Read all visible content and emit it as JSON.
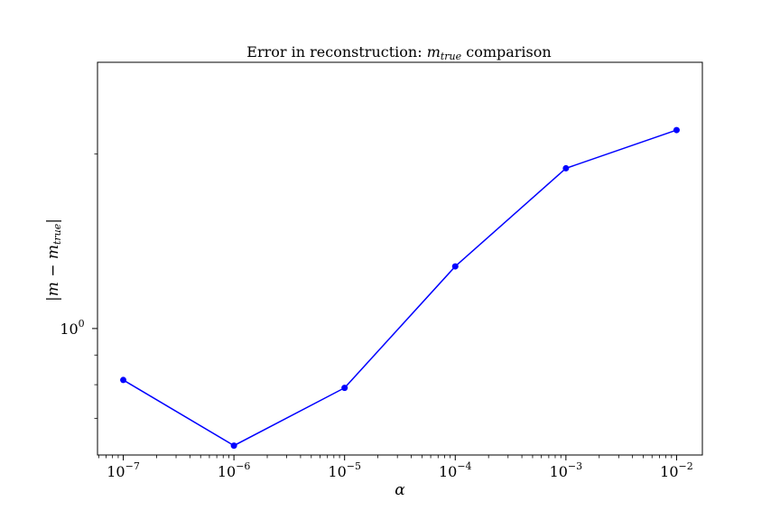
{
  "chart_data": {
    "type": "line",
    "title_prefix": "Error in reconstruction: ",
    "title_math_base": "m",
    "title_math_sub": "true",
    "title_suffix": " comparison",
    "xlabel": "α",
    "ylabel_base": "|m − m",
    "ylabel_sub": "true",
    "ylabel_close": "|",
    "x_scale": "log",
    "y_scale": "log",
    "xlim": [
      5.85e-08,
      0.0171
    ],
    "ylim": [
      0.605,
      2.88
    ],
    "x_ticks": [
      {
        "value": 1e-07,
        "base": "10",
        "exp": "−7"
      },
      {
        "value": 1e-06,
        "base": "10",
        "exp": "−6"
      },
      {
        "value": 1e-05,
        "base": "10",
        "exp": "−5"
      },
      {
        "value": 0.0001,
        "base": "10",
        "exp": "−4"
      },
      {
        "value": 0.001,
        "base": "10",
        "exp": "−3"
      },
      {
        "value": 0.01,
        "base": "10",
        "exp": "−2"
      }
    ],
    "y_major_ticks": [
      {
        "value": 1,
        "base": "10",
        "exp": "0"
      }
    ],
    "y_minor_ticks": [
      0.7,
      0.8,
      0.9,
      2
    ],
    "color": "#0000ff",
    "series": [
      {
        "name": "error",
        "x": [
          1e-07,
          1e-06,
          1e-05,
          0.0001,
          0.001,
          0.01
        ],
        "y": [
          0.815,
          0.628,
          0.79,
          1.28,
          1.89,
          2.2
        ]
      }
    ]
  }
}
